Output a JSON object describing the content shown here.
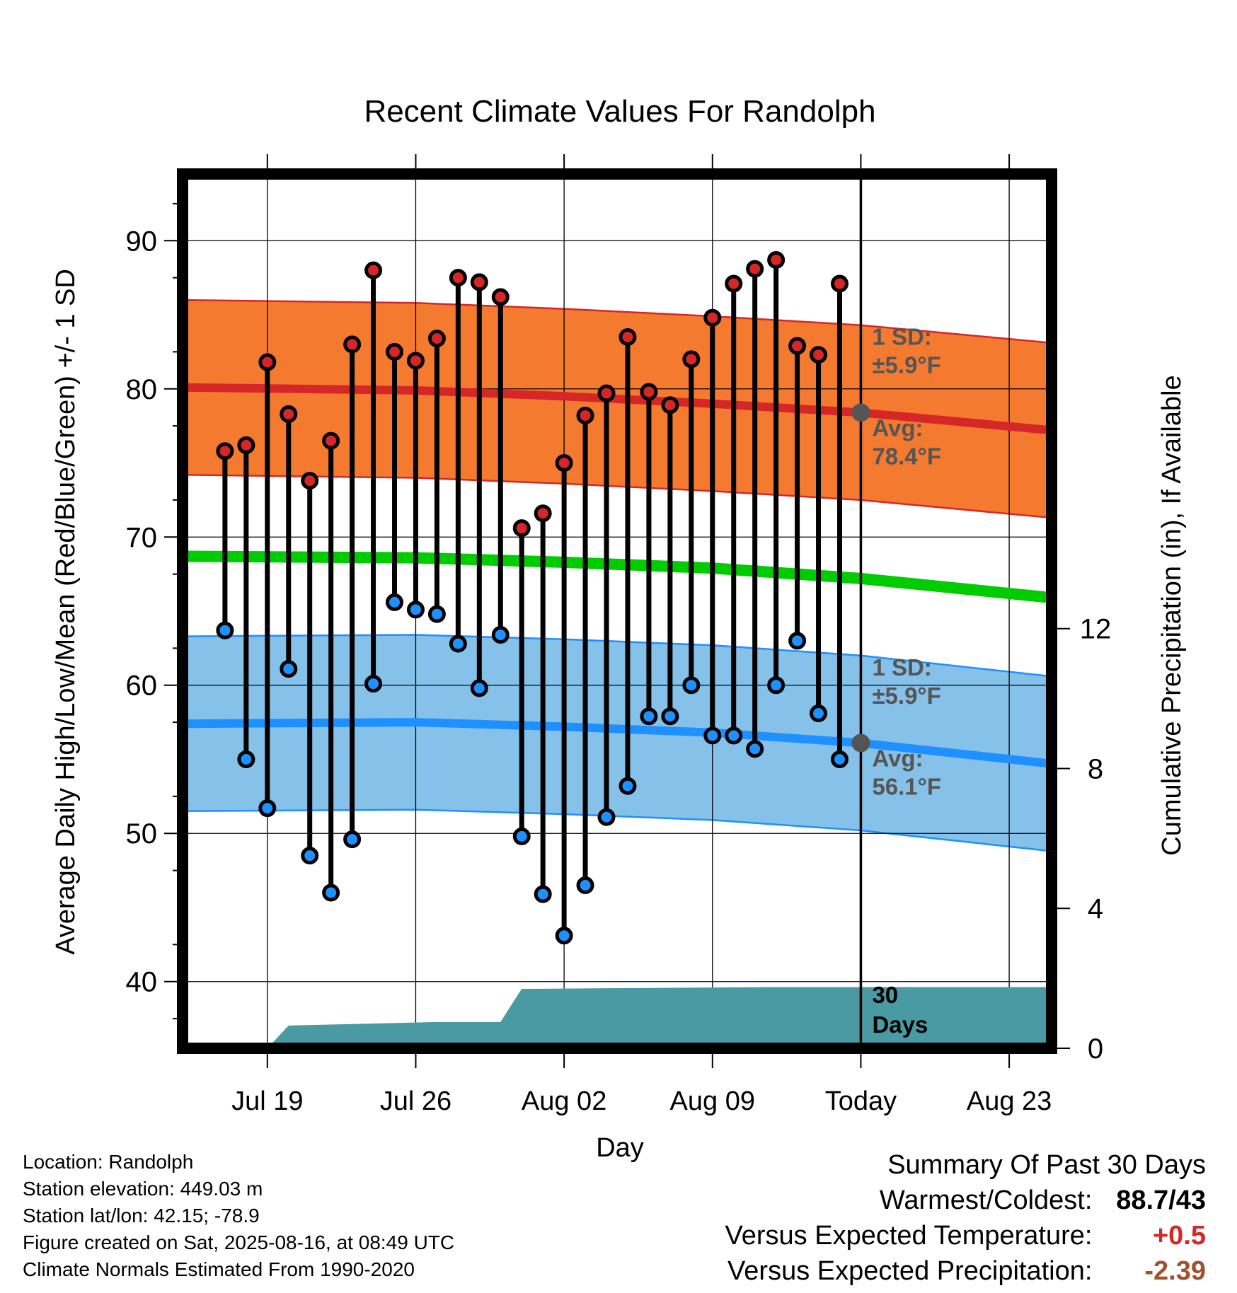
{
  "chart_data": {
    "type": "line",
    "title": "Recent Climate Values For Randolph",
    "xlabel": "Day",
    "ylabel": "Average Daily High/Low/Mean (Red/Blue/Green) +/- 1 SD",
    "y2label": "Cumulative Precipitation (in), If Available",
    "ylim": [
      35.5,
      94.5
    ],
    "y_ticks": [
      40,
      50,
      60,
      70,
      80,
      90
    ],
    "y2_ticks": [
      0,
      4,
      8,
      12
    ],
    "y2lim": [
      0,
      25
    ],
    "x_range": [
      "Jul 15",
      "Aug 25"
    ],
    "x_ticks": [
      {
        "date": "Jul 19",
        "label": "Jul 19"
      },
      {
        "date": "Jul 26",
        "label": "Jul 26"
      },
      {
        "date": "Aug 02",
        "label": "Aug 02"
      },
      {
        "date": "Aug 09",
        "label": "Aug 09"
      },
      {
        "date": "Aug 16",
        "label": "Today"
      },
      {
        "date": "Aug 23",
        "label": "Aug 23"
      }
    ],
    "today": "Aug 16",
    "grid": true,
    "series": [
      {
        "name": "Daily High",
        "color": "#d62728",
        "x": [
          "Jul 17",
          "Jul 18",
          "Jul 19",
          "Jul 20",
          "Jul 21",
          "Jul 22",
          "Jul 23",
          "Jul 24",
          "Jul 25",
          "Jul 26",
          "Jul 27",
          "Jul 28",
          "Jul 29",
          "Jul 30",
          "Jul 31",
          "Aug 01",
          "Aug 02",
          "Aug 03",
          "Aug 04",
          "Aug 05",
          "Aug 06",
          "Aug 07",
          "Aug 08",
          "Aug 09",
          "Aug 10",
          "Aug 11",
          "Aug 12",
          "Aug 13",
          "Aug 14",
          "Aug 15"
        ],
        "values": [
          75.8,
          76.2,
          81.8,
          78.3,
          73.8,
          76.5,
          83.0,
          88.0,
          82.5,
          81.9,
          83.4,
          87.5,
          87.2,
          86.2,
          70.6,
          71.6,
          75.0,
          78.2,
          79.7,
          83.5,
          79.8,
          78.9,
          82.0,
          84.8,
          87.1,
          88.1,
          88.7,
          82.9,
          82.3,
          87.1
        ]
      },
      {
        "name": "Daily Low",
        "color": "#1e90ff",
        "x": [
          "Jul 17",
          "Jul 18",
          "Jul 19",
          "Jul 20",
          "Jul 21",
          "Jul 22",
          "Jul 23",
          "Jul 24",
          "Jul 25",
          "Jul 26",
          "Jul 27",
          "Jul 28",
          "Jul 29",
          "Jul 30",
          "Jul 31",
          "Aug 01",
          "Aug 02",
          "Aug 03",
          "Aug 04",
          "Aug 05",
          "Aug 06",
          "Aug 07",
          "Aug 08",
          "Aug 09",
          "Aug 10",
          "Aug 11",
          "Aug 12",
          "Aug 13",
          "Aug 14",
          "Aug 15"
        ],
        "values": [
          63.7,
          55.0,
          51.7,
          61.1,
          48.5,
          46.0,
          49.6,
          60.1,
          65.6,
          65.1,
          64.8,
          62.8,
          59.8,
          63.4,
          49.8,
          45.9,
          43.1,
          46.5,
          51.1,
          53.2,
          57.9,
          57.9,
          60.0,
          56.6,
          56.6,
          55.7,
          60.0,
          63.0,
          58.1,
          55.0
        ]
      },
      {
        "name": "Normal High",
        "color": "#d62728",
        "x": [
          "Jul 15",
          "Jul 26",
          "Aug 02",
          "Aug 09",
          "Aug 16",
          "Aug 25"
        ],
        "values": [
          80.1,
          79.9,
          79.5,
          79.0,
          78.4,
          77.2
        ],
        "sd": 5.9
      },
      {
        "name": "Normal Low",
        "color": "#1e90ff",
        "x": [
          "Jul 15",
          "Jul 26",
          "Aug 02",
          "Aug 09",
          "Aug 16",
          "Aug 25"
        ],
        "values": [
          57.4,
          57.5,
          57.2,
          56.8,
          56.1,
          54.7
        ],
        "sd": 5.9
      },
      {
        "name": "Normal Mean",
        "color": "#00cc00",
        "x": [
          "Jul 15",
          "Jul 26",
          "Aug 02",
          "Aug 09",
          "Aug 16",
          "Aug 25"
        ],
        "values": [
          68.7,
          68.6,
          68.3,
          67.9,
          67.2,
          65.9
        ]
      },
      {
        "name": "Cumulative Precipitation",
        "color": "#4a9aa3",
        "x": [
          "Jul 19",
          "Jul 20",
          "Jul 27",
          "Jul 30",
          "Jul 31",
          "Aug 12",
          "Aug 25"
        ],
        "values": [
          0,
          0.65,
          0.75,
          0.75,
          1.7,
          1.75,
          1.75
        ]
      }
    ],
    "annotations": {
      "high_sd_label": "1 SD:",
      "high_sd_value": "±5.9°F",
      "high_avg_label": "Avg:",
      "high_avg_value": "78.4°F",
      "low_sd_label": "1 SD:",
      "low_sd_value": "±5.9°F",
      "low_avg_label": "Avg:",
      "low_avg_value": "56.1°F",
      "days_number": "30",
      "days_word": "Days"
    }
  },
  "colors": {
    "high_band": "#f47a30",
    "high_line": "#d62728",
    "low_band": "#85c1e9",
    "low_line": "#1e90ff",
    "mean_line": "#00cc00",
    "precip": "#4a9aa3",
    "annotation": "#555555",
    "positive": "#d62728",
    "precip_deficit": "#a0522d"
  },
  "info": {
    "location": "Location: Randolph",
    "elevation": "Station elevation: 449.03 m",
    "latlon": "Station lat/lon: 42.15; -78.9",
    "created": "Figure created on Sat, 2025-08-16, at 08:49 UTC",
    "normals": "Climate Normals Estimated From 1990-2020"
  },
  "summary": {
    "title": "Summary Of Past 30 Days",
    "warm_cold_label": "Warmest/Coldest:",
    "warm_cold_value": "88.7/43",
    "temp_label": "Versus Expected Temperature:",
    "temp_value": "+0.5",
    "precip_label": "Versus Expected Precipitation:",
    "precip_value": "-2.39"
  }
}
